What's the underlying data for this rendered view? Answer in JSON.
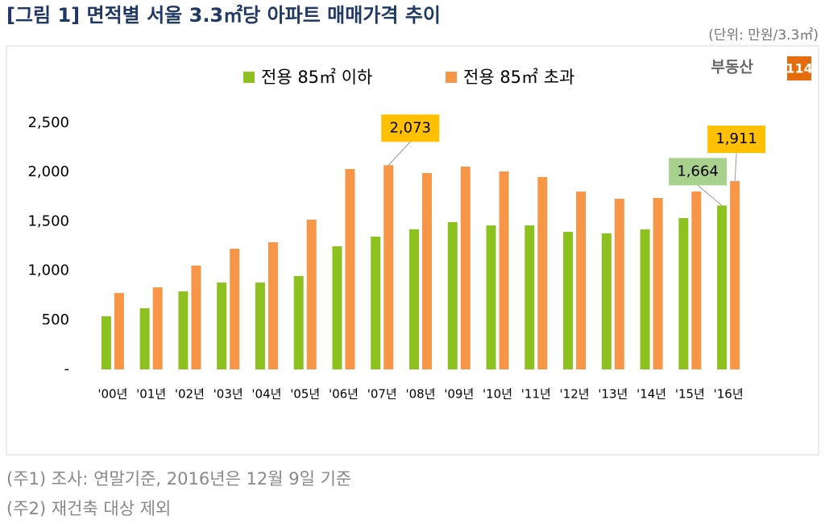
{
  "chart_data": {
    "type": "bar",
    "title": "[그림 1] 면적별 서울 3.3㎡당 아파트 매매가격 추이",
    "unit": "(단위: 만원/3.3㎡)",
    "logo": [
      "부동산",
      "114"
    ],
    "categories": [
      "'00년",
      "'01년",
      "'02년",
      "'03년",
      "'04년",
      "'05년",
      "'06년",
      "'07년",
      "'08년",
      "'09년",
      "'10년",
      "'11년",
      "'12년",
      "'13년",
      "'14년",
      "'15년",
      "'16년"
    ],
    "series": [
      {
        "name": "전용 85㎡ 이하",
        "color": "#8cc120",
        "values": [
          539,
          621,
          792,
          882,
          882,
          948,
          1250,
          1348,
          1422,
          1495,
          1462,
          1462,
          1397,
          1381,
          1422,
          1536,
          1664
        ],
        "value_labels": [
          null,
          null,
          null,
          null,
          null,
          null,
          null,
          null,
          null,
          null,
          null,
          null,
          null,
          null,
          null,
          null,
          "1,664"
        ],
        "label_color": "#a9d18e"
      },
      {
        "name": "전용 85㎡ 초과",
        "color": "#f79646",
        "values": [
          776,
          833,
          1054,
          1225,
          1291,
          1520,
          2034,
          2073,
          1993,
          2059,
          2010,
          1953,
          1806,
          1732,
          1740,
          1806,
          1911
        ],
        "value_labels": [
          null,
          null,
          null,
          null,
          null,
          null,
          null,
          "2,073",
          null,
          null,
          null,
          null,
          null,
          null,
          null,
          null,
          "1,911"
        ],
        "label_color": "#ffc000"
      }
    ],
    "ylim": [
      0,
      2500
    ],
    "yticks": [
      {
        "value": 0,
        "label": "-"
      },
      500,
      {
        "value": 1000,
        "label": "1,000"
      },
      {
        "value": 1500,
        "label": "1,500"
      },
      {
        "value": 2000,
        "label": "2,000"
      },
      {
        "value": 2500,
        "label": "2,500"
      }
    ],
    "legend": "top",
    "notes": [
      "(주1) 조사: 연말기준, 2016년은 12월 9일 기준",
      "(주2) 재건축 대상 제외"
    ]
  }
}
